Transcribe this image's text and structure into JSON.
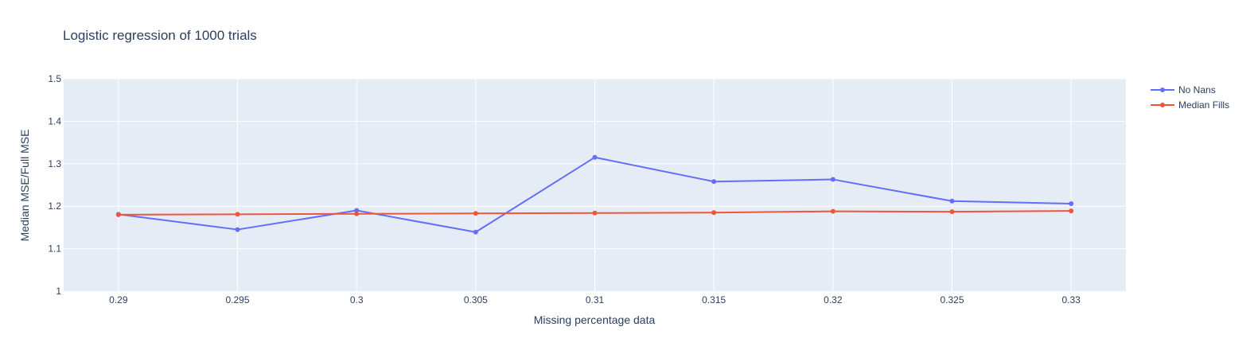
{
  "chart_data": {
    "type": "line",
    "title": "Logistic regression of 1000 trials",
    "xlabel": "Missing percentage data",
    "ylabel": "Median MSE/Full MSE",
    "x": [
      0.29,
      0.295,
      0.3,
      0.305,
      0.31,
      0.315,
      0.32,
      0.325,
      0.33
    ],
    "x_ticks": [
      "0.29",
      "0.295",
      "0.3",
      "0.305",
      "0.31",
      "0.315",
      "0.32",
      "0.325",
      "0.33"
    ],
    "y_ticks": [
      "1",
      "1.1",
      "1.2",
      "1.3",
      "1.4",
      "1.5"
    ],
    "xlim": [
      0.2877,
      0.3323
    ],
    "ylim": [
      1,
      1.5
    ],
    "grid": true,
    "legend_position": "top-right",
    "background_color": "#e5ecf6",
    "series": [
      {
        "name": "No Nans",
        "color": "#636efa",
        "values": [
          1.181,
          1.145,
          1.19,
          1.139,
          1.315,
          1.258,
          1.263,
          1.212,
          1.206
        ]
      },
      {
        "name": "Median Fills",
        "color": "#ef553b",
        "values": [
          1.18,
          1.181,
          1.182,
          1.183,
          1.184,
          1.185,
          1.188,
          1.187,
          1.189
        ]
      }
    ]
  }
}
